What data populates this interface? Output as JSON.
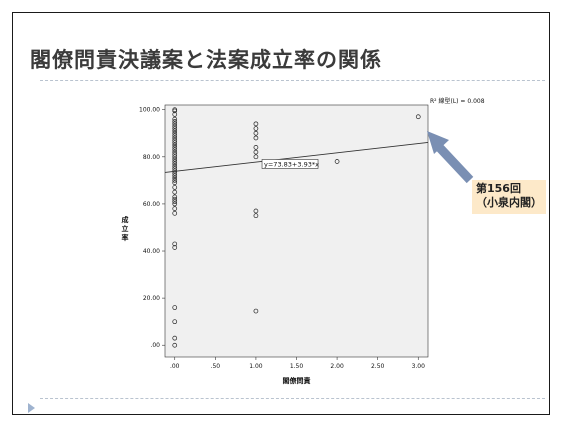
{
  "slide": {
    "title": "閣僚問責決議案と法案成立率の関係",
    "callout": {
      "line1": "第156回",
      "line2": "（小泉内閣）"
    }
  },
  "colors": {
    "plot_bg": "#f0f0f0",
    "arrow": "#7a8fb3",
    "callout_bg": "#fde9c9",
    "rule": "#b9c3cf"
  },
  "chart_data": {
    "type": "scatter",
    "xlabel": "閣僚問責",
    "ylabel": "成立率",
    "xlim": [
      -0.12,
      3.12
    ],
    "ylim": [
      -5,
      102
    ],
    "x_ticks": [
      0,
      0.5,
      1,
      1.5,
      2,
      2.5,
      3
    ],
    "x_tick_labels": [
      ".00",
      ".50",
      "1.00",
      "1.50",
      "2.00",
      "2.50",
      "3.00"
    ],
    "y_ticks": [
      0,
      20,
      40,
      60,
      80,
      100
    ],
    "y_tick_labels": [
      ".00",
      "20.00",
      "40.00",
      "60.00",
      "80.00",
      "100.00"
    ],
    "grid": false,
    "fit_line": {
      "intercept": 73.83,
      "slope": 3.93,
      "label": "y=73.83+3.93*x"
    },
    "r2_label": "R² 線型(L) = 0.008",
    "points": [
      {
        "x": 0,
        "y": 100
      },
      {
        "x": 0,
        "y": 99.5
      },
      {
        "x": 0,
        "y": 98
      },
      {
        "x": 0,
        "y": 96
      },
      {
        "x": 0,
        "y": 95
      },
      {
        "x": 0,
        "y": 94
      },
      {
        "x": 0,
        "y": 93
      },
      {
        "x": 0,
        "y": 92
      },
      {
        "x": 0,
        "y": 91
      },
      {
        "x": 0,
        "y": 90
      },
      {
        "x": 0,
        "y": 89
      },
      {
        "x": 0,
        "y": 88
      },
      {
        "x": 0,
        "y": 87
      },
      {
        "x": 0,
        "y": 86
      },
      {
        "x": 0,
        "y": 85
      },
      {
        "x": 0,
        "y": 84
      },
      {
        "x": 0,
        "y": 83
      },
      {
        "x": 0,
        "y": 82
      },
      {
        "x": 0,
        "y": 81
      },
      {
        "x": 0,
        "y": 80
      },
      {
        "x": 0,
        "y": 79
      },
      {
        "x": 0,
        "y": 78
      },
      {
        "x": 0,
        "y": 77
      },
      {
        "x": 0,
        "y": 76
      },
      {
        "x": 0,
        "y": 75
      },
      {
        "x": 0,
        "y": 74
      },
      {
        "x": 0,
        "y": 73
      },
      {
        "x": 0,
        "y": 72
      },
      {
        "x": 0,
        "y": 71
      },
      {
        "x": 0,
        "y": 70
      },
      {
        "x": 0,
        "y": 69
      },
      {
        "x": 0,
        "y": 67
      },
      {
        "x": 0,
        "y": 65
      },
      {
        "x": 0,
        "y": 63
      },
      {
        "x": 0,
        "y": 62
      },
      {
        "x": 0,
        "y": 61
      },
      {
        "x": 0,
        "y": 60
      },
      {
        "x": 0,
        "y": 58
      },
      {
        "x": 0,
        "y": 56
      },
      {
        "x": 0,
        "y": 43
      },
      {
        "x": 0,
        "y": 41.5
      },
      {
        "x": 0,
        "y": 16
      },
      {
        "x": 0,
        "y": 10
      },
      {
        "x": 0,
        "y": 3
      },
      {
        "x": 0,
        "y": 0
      },
      {
        "x": 1,
        "y": 94
      },
      {
        "x": 1,
        "y": 92
      },
      {
        "x": 1,
        "y": 90
      },
      {
        "x": 1,
        "y": 88
      },
      {
        "x": 1,
        "y": 84
      },
      {
        "x": 1,
        "y": 82
      },
      {
        "x": 1,
        "y": 80
      },
      {
        "x": 1,
        "y": 57
      },
      {
        "x": 1,
        "y": 55
      },
      {
        "x": 1,
        "y": 14.5
      },
      {
        "x": 2,
        "y": 78
      },
      {
        "x": 3,
        "y": 97
      }
    ]
  }
}
